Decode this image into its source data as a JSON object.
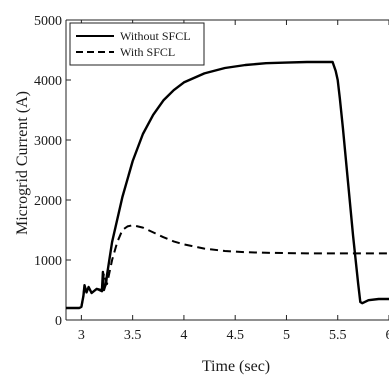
{
  "chart_data": {
    "type": "line",
    "title": "",
    "xlabel": "Time (sec)",
    "ylabel": "Microgrid Current (A)",
    "xlim": [
      2.85,
      6.0
    ],
    "ylim": [
      0,
      5000
    ],
    "x_ticks": [
      3,
      3.5,
      4,
      4.5,
      5,
      5.5,
      6
    ],
    "x_tick_labels": [
      "3",
      "3.5",
      "4",
      "4.5",
      "5",
      "5.5",
      "6"
    ],
    "y_ticks": [
      0,
      1000,
      2000,
      3000,
      4000,
      5000
    ],
    "y_tick_labels": [
      "0",
      "1000",
      "2000",
      "3000",
      "4000",
      "5000"
    ],
    "grid": false,
    "legend": "top-left",
    "series": [
      {
        "name": "Without SFCL",
        "line_style": "solid",
        "color": "#000000",
        "x": [
          2.85,
          2.98,
          3.0,
          3.02,
          3.03,
          3.05,
          3.07,
          3.1,
          3.15,
          3.2,
          3.21,
          3.22,
          3.23,
          3.24,
          3.25,
          3.3,
          3.4,
          3.5,
          3.6,
          3.7,
          3.8,
          3.9,
          4.0,
          4.2,
          4.4,
          4.6,
          4.8,
          5.0,
          5.2,
          5.4,
          5.45,
          5.48,
          5.5,
          5.52,
          5.55,
          5.6,
          5.65,
          5.7,
          5.72,
          5.74,
          5.8,
          5.9,
          6.0
        ],
        "y": [
          200,
          200,
          220,
          400,
          580,
          460,
          550,
          450,
          520,
          480,
          800,
          500,
          560,
          600,
          750,
          1300,
          2050,
          2650,
          3100,
          3420,
          3660,
          3830,
          3960,
          4110,
          4200,
          4250,
          4280,
          4290,
          4300,
          4300,
          4300,
          4150,
          4000,
          3700,
          3200,
          2300,
          1400,
          600,
          300,
          280,
          330,
          350,
          350
        ]
      },
      {
        "name": "With SFCL",
        "line_style": "dashed",
        "color": "#000000",
        "x": [
          2.85,
          2.98,
          3.0,
          3.02,
          3.03,
          3.05,
          3.07,
          3.1,
          3.15,
          3.2,
          3.22,
          3.25,
          3.3,
          3.35,
          3.4,
          3.45,
          3.5,
          3.6,
          3.7,
          3.8,
          3.9,
          4.0,
          4.2,
          4.4,
          4.6,
          4.8,
          5.0,
          5.2,
          5.4,
          5.6,
          5.8,
          6.0
        ],
        "y": [
          200,
          200,
          220,
          400,
          580,
          460,
          550,
          450,
          520,
          500,
          780,
          600,
          1000,
          1300,
          1500,
          1560,
          1580,
          1540,
          1460,
          1380,
          1310,
          1260,
          1190,
          1150,
          1130,
          1120,
          1115,
          1110,
          1110,
          1110,
          1110,
          1110
        ]
      }
    ]
  }
}
